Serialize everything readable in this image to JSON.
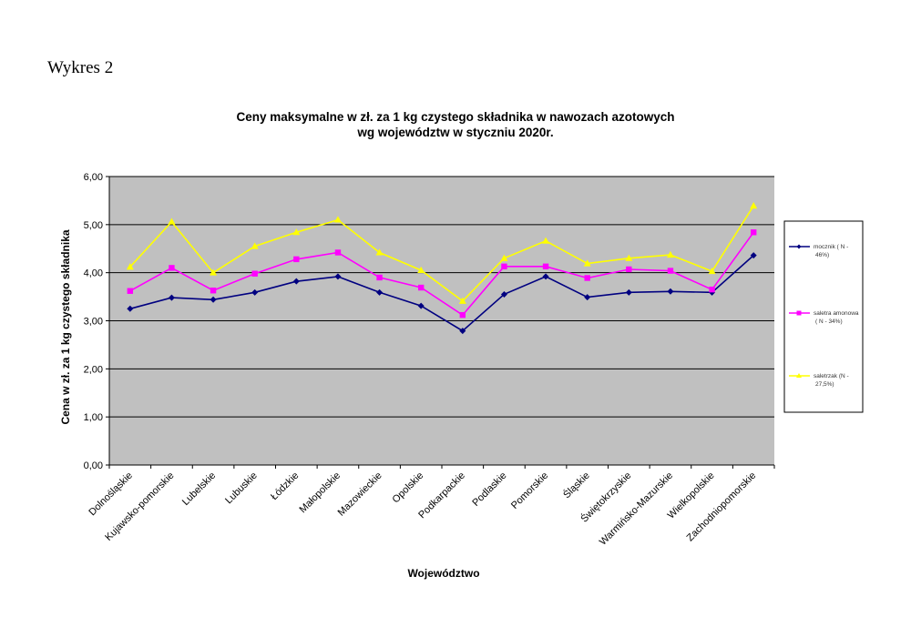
{
  "page": {
    "heading": "Wykres 2"
  },
  "chart_data": {
    "type": "line",
    "title": [
      "Ceny maksymalne  w zł. za 1 kg czystego składnika w nawozach azotowych",
      "wg województw w styczniu 2020r."
    ],
    "xlabel": "Województwo",
    "ylabel": "Cena w zł. za 1 kg czystego składnika",
    "ylim": [
      0,
      6
    ],
    "yticks": [
      "0,00",
      "1,00",
      "2,00",
      "3,00",
      "4,00",
      "5,00",
      "6,00"
    ],
    "grid": true,
    "legend_position": "right",
    "plot_background": "#c0c0c0",
    "categories": [
      "Dolnośląskie",
      "Kujawsko-pomorskie",
      "Lubelskie",
      "Lubuskie",
      "Łódzkie",
      "Małopolskie",
      "Mazowieckie",
      "Opolskie",
      "Podkarpackie",
      "Podlaskie",
      "Pomorskie",
      "Śląskie",
      "Świętokrzyskie",
      "Warmińsko-Mazurskie",
      "Wielkopolskie",
      "Zachodniopomorskie"
    ],
    "series": [
      {
        "name": [
          "mocznik ( N -",
          "46%)"
        ],
        "color": "#000080",
        "marker": "diamond",
        "values": [
          3.25,
          3.48,
          3.44,
          3.59,
          3.82,
          3.92,
          3.59,
          3.31,
          2.79,
          3.55,
          3.92,
          3.49,
          3.59,
          3.61,
          3.59,
          4.36
        ]
      },
      {
        "name": [
          "saletra amonowa",
          "( N - 34%)"
        ],
        "color": "#ff00ff",
        "marker": "square",
        "values": [
          3.62,
          4.1,
          3.63,
          3.98,
          4.28,
          4.42,
          3.9,
          3.69,
          3.12,
          4.13,
          4.13,
          3.89,
          4.07,
          4.04,
          3.65,
          4.84
        ]
      },
      {
        "name": [
          "saletrzak (N -",
          "27,5%)"
        ],
        "color": "#ffff00",
        "marker": "triangle",
        "values": [
          4.12,
          5.06,
          4.0,
          4.55,
          4.84,
          5.1,
          4.42,
          4.05,
          3.41,
          4.3,
          4.66,
          4.19,
          4.3,
          4.37,
          4.03,
          5.39
        ]
      }
    ]
  }
}
